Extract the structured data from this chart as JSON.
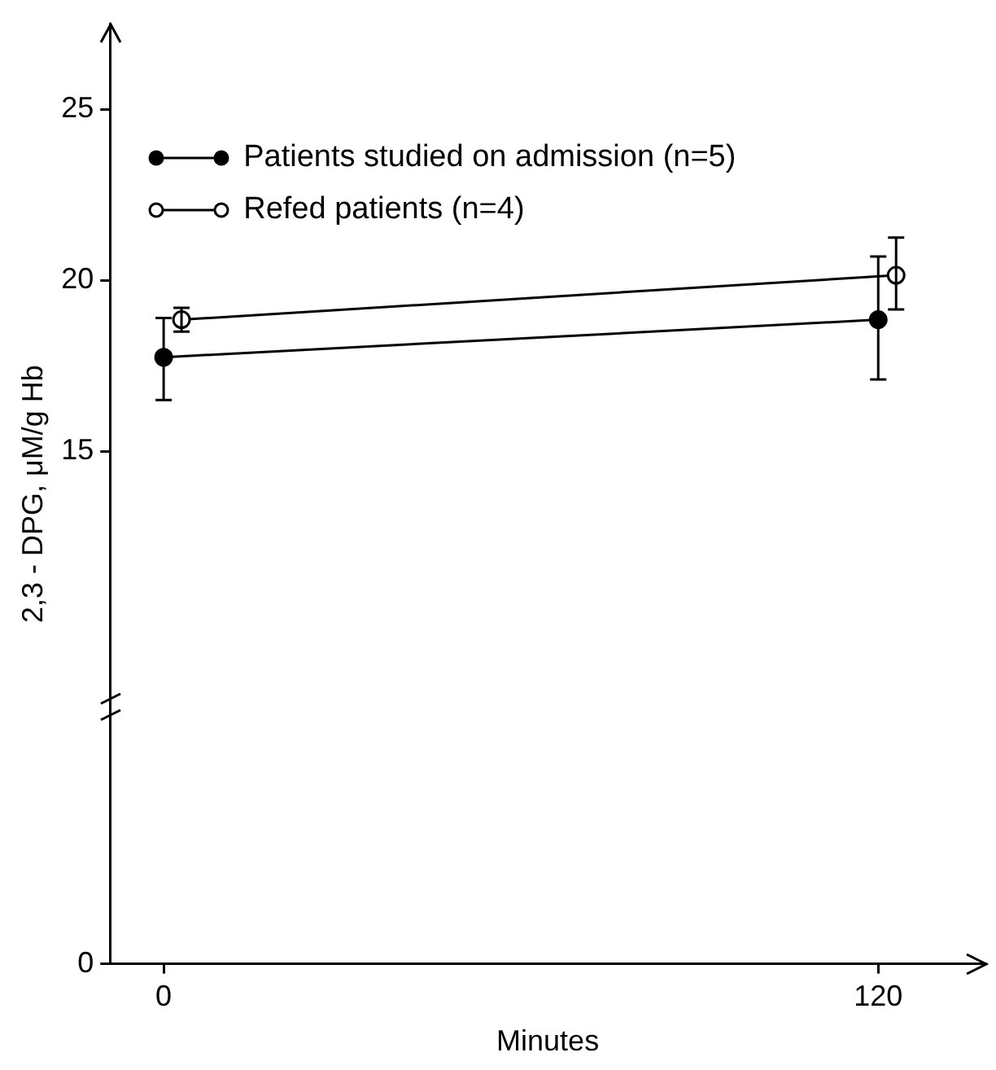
{
  "chart_data": {
    "type": "line",
    "xlabel": "Minutes",
    "ylabel": "2,3 - DPG, μM/g Hb",
    "xlim": [
      -9,
      138
    ],
    "xticks": [
      0,
      120
    ],
    "ylim": [
      0,
      27.5
    ],
    "yticks": [
      0,
      15,
      20,
      25
    ],
    "series": [
      {
        "name": "Patients studied on admission (n=5)",
        "color": "#000000",
        "marker": "circle",
        "x": [
          0,
          120
        ],
        "values": [
          17.75,
          18.85
        ],
        "errors": [
          [
            16.5,
            18.9
          ],
          [
            17.1,
            20.7
          ]
        ]
      },
      {
        "name": "Refed patients (n=4)",
        "color": "#000000",
        "marker": "open-circle",
        "x": [
          3,
          123
        ],
        "values": [
          18.85,
          20.15
        ],
        "errors": [
          [
            18.5,
            19.2
          ],
          [
            19.15,
            21.25
          ]
        ]
      }
    ],
    "grid": false,
    "legend": "top left",
    "line_style": "solid"
  }
}
